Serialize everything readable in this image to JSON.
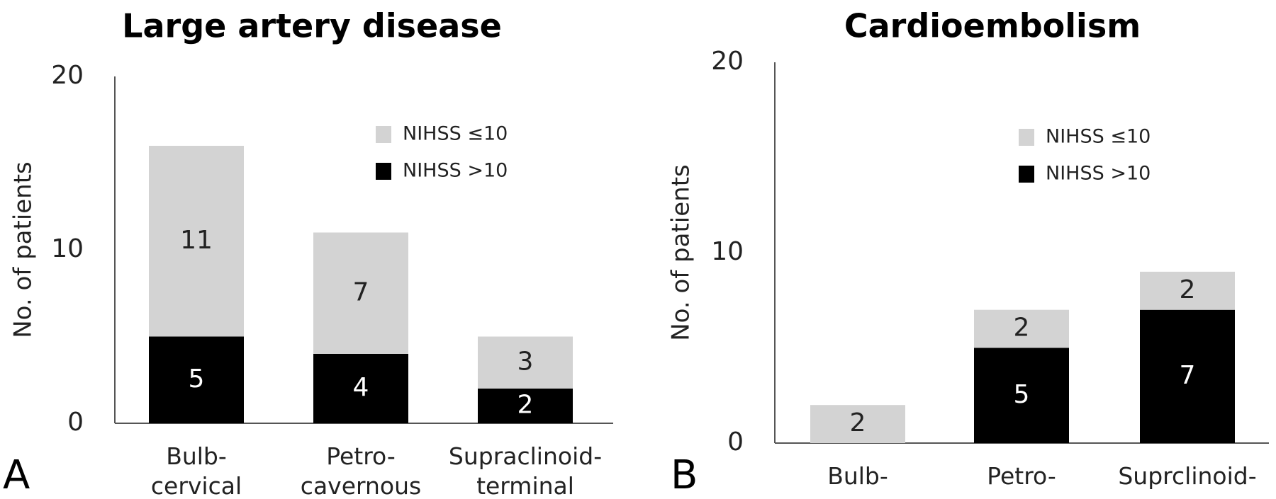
{
  "chart_data": [
    {
      "type": "bar",
      "stacked": true,
      "panel_label": "A",
      "title": "Large artery disease",
      "ylabel": "No. of patients",
      "ylim": [
        0,
        20
      ],
      "yticks": [
        0,
        10,
        20
      ],
      "categories": [
        "Bulb-\ncervical",
        "Petro-\ncavernous",
        "Supraclinoid-\nterminal"
      ],
      "series": [
        {
          "name": "NIHSS >10",
          "color": "#000000",
          "label_color": "#ffffff",
          "values": [
            5,
            4,
            2
          ]
        },
        {
          "name": "NIHSS ≤10",
          "color": "#d3d3d3",
          "label_color": "#222222",
          "values": [
            11,
            7,
            3
          ]
        }
      ],
      "legend": "upper right, NIHSS ≤10 listed first",
      "grid": false
    },
    {
      "type": "bar",
      "stacked": true,
      "panel_label": "B",
      "title": "Cardioembolism",
      "ylabel": "No. of patients",
      "ylim": [
        0,
        20
      ],
      "yticks": [
        0,
        10,
        20
      ],
      "categories": [
        "Bulb-",
        "Petro-",
        "Suprclinoid-"
      ],
      "series": [
        {
          "name": "NIHSS >10",
          "color": "#000000",
          "label_color": "#ffffff",
          "values": [
            0,
            5,
            7
          ]
        },
        {
          "name": "NIHSS ≤10",
          "color": "#d3d3d3",
          "label_color": "#222222",
          "values": [
            2,
            2,
            2
          ]
        }
      ],
      "legend": "upper right, NIHSS ≤10 listed first",
      "grid": false
    }
  ]
}
